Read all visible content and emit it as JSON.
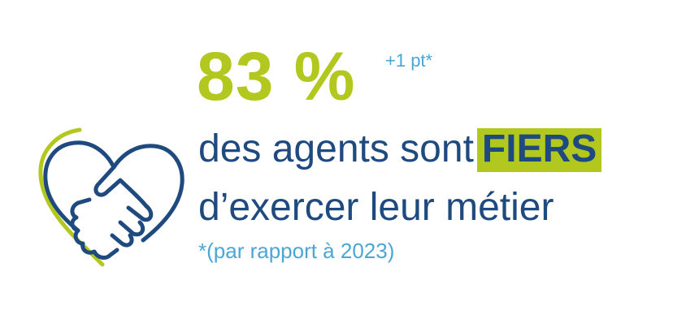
{
  "colors": {
    "navy": "#1f4a7f",
    "lime": "#b3c81e",
    "light_blue": "#4ba6d6",
    "background": "#ffffff"
  },
  "icon": {
    "name": "handshake-heart-icon"
  },
  "stat": {
    "value": "83 %",
    "delta": "+1 pt*"
  },
  "headline": {
    "prefix": "des agents sont",
    "highlight": "FIERS",
    "line2": "d’exercer leur métier"
  },
  "footnote": "*(par rapport à 2023)"
}
